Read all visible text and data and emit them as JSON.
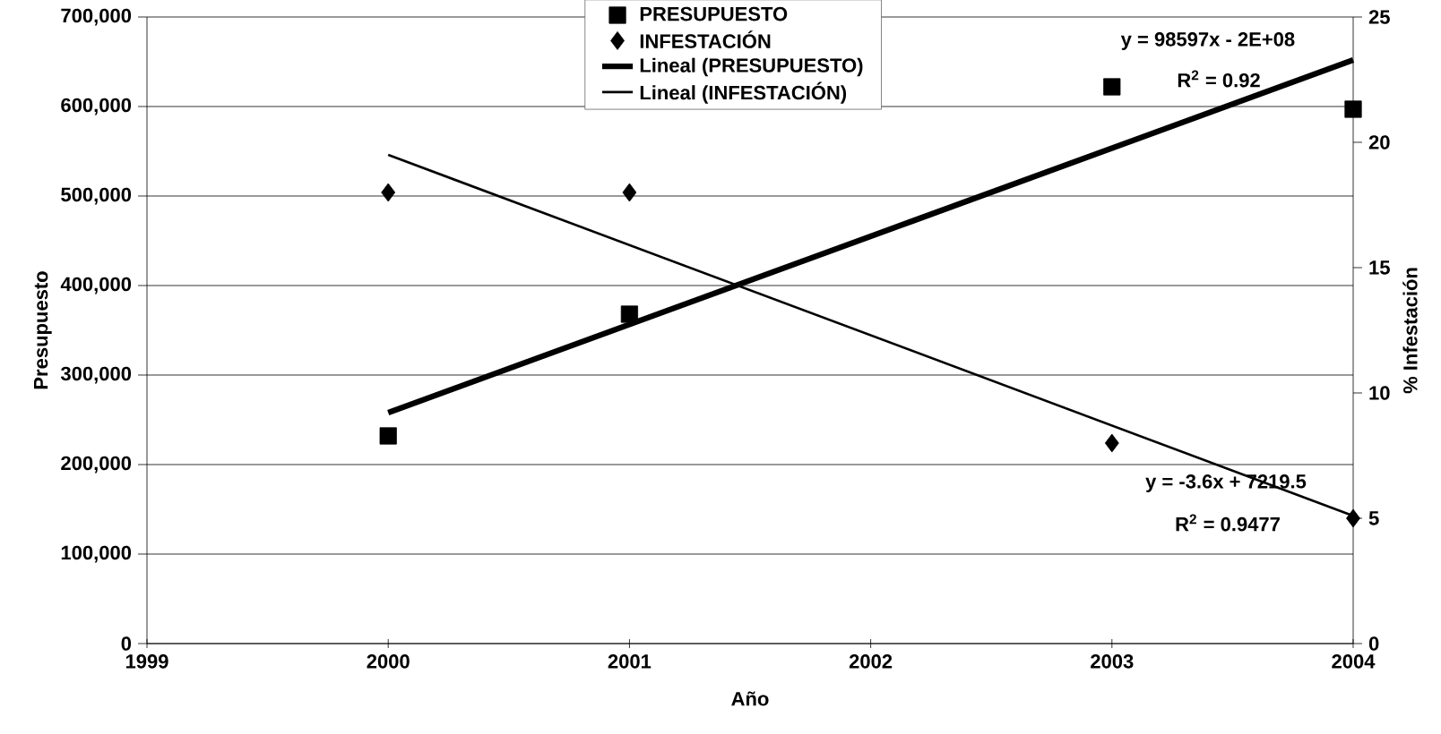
{
  "chart_data": {
    "type": "scatter",
    "xlabel": "Año",
    "ylabel": "Presupuesto",
    "y2label": "% Infestación",
    "xlim": [
      1999,
      2004
    ],
    "xticks": [
      1999,
      2000,
      2001,
      2002,
      2003,
      2004
    ],
    "ylim": [
      0,
      700000
    ],
    "yticks": [
      {
        "value": 0,
        "label": "0"
      },
      {
        "value": 100000,
        "label": "100,000"
      },
      {
        "value": 200000,
        "label": "200,000"
      },
      {
        "value": 300000,
        "label": "300,000"
      },
      {
        "value": 400000,
        "label": "400,000"
      },
      {
        "value": 500000,
        "label": "500,000"
      },
      {
        "value": 600000,
        "label": "600,000"
      },
      {
        "value": 700000,
        "label": "700,000"
      }
    ],
    "y2lim": [
      0,
      25
    ],
    "y2ticks": [
      0,
      5,
      10,
      15,
      20,
      25
    ],
    "grid": "y",
    "legend": "top",
    "series": [
      {
        "name": "PRESUPUESTO",
        "type": "scatter",
        "marker": "square",
        "color": "#000000",
        "x": [
          2000,
          2001,
          2003,
          2004
        ],
        "values": [
          232000,
          368000,
          622000,
          597000
        ]
      },
      {
        "name": "INFESTACIÓN",
        "type": "scatter",
        "marker": "diamond",
        "color": "#000000",
        "axis": "y2",
        "x": [
          2000,
          2001,
          2003,
          2004
        ],
        "values": [
          18,
          18,
          8,
          5
        ]
      },
      {
        "name": "Lineal (PRESUPUESTO)",
        "type": "line",
        "marker": "none",
        "color": "#000000",
        "x": [
          2000,
          2004
        ],
        "values": [
          258000,
          652000
        ]
      },
      {
        "name": "Lineal (INFESTACIÓN)",
        "type": "line",
        "marker": "none",
        "color": "#000000",
        "axis": "y2",
        "x": [
          2000,
          2004
        ],
        "values": [
          19.5,
          5.1
        ]
      }
    ],
    "annotations": [
      "y = 98597x - 2E+08",
      "R$^{2}$ = 0.92",
      "y = -3.6x + 7219.5",
      "R$^{2}$ = 0.9477"
    ]
  }
}
